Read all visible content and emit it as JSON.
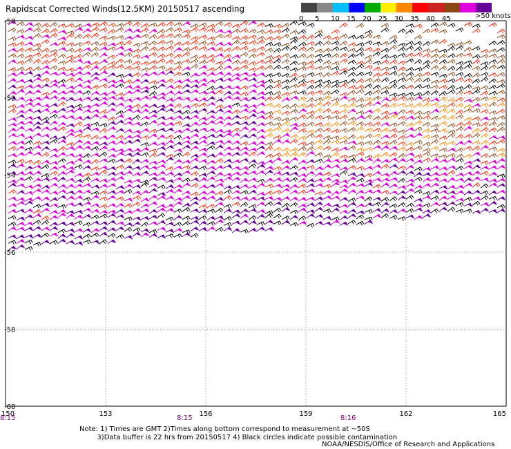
{
  "title": "Rapidscat Corrected Winds(12.5KM) 20150517 ascending",
  "legend": {
    "bins": [
      {
        "label": "0",
        "color": "#444444"
      },
      {
        "label": "5",
        "color": "#888888"
      },
      {
        "label": "10",
        "color": "#00bfff"
      },
      {
        "label": "15",
        "color": "#0000ff"
      },
      {
        "label": "20",
        "color": "#00aa00"
      },
      {
        "label": "25",
        "color": "#ffee00"
      },
      {
        "label": "30",
        "color": "#ff8800"
      },
      {
        "label": "35",
        "color": "#ff0000"
      },
      {
        "label": "40",
        "color": "#cc2222"
      },
      {
        "label": "45",
        "color": "#8b4513"
      },
      {
        "label": "",
        "color": "#dd00dd"
      },
      {
        "label": "",
        "color": "#660099"
      }
    ],
    "units": ">50 knots"
  },
  "axes": {
    "lon_ticks": [
      "150",
      "153",
      "156",
      "159",
      "162",
      "165"
    ],
    "lat_ticks": [
      "-50",
      "-52",
      "-54",
      "-56",
      "-58",
      "-60"
    ],
    "lon_range": [
      150,
      165
    ],
    "lat_range": [
      -50,
      -60
    ],
    "grid": "dotted"
  },
  "orbit_times": [
    {
      "label": "8:15",
      "lon": 150
    },
    {
      "label": "8:15",
      "lon": 155.3
    },
    {
      "label": "8:16",
      "lon": 160.2
    }
  ],
  "note_lines": [
    "Note: 1) Times are GMT 2)Times along bottom correspond to measurement at ~50S",
    "        3)Data buffer is 22 hrs from 20150517 4) Black circles indicate possible contamination"
  ],
  "credit": "NOAA/NESDIS/Office of Research and Applications",
  "colors": {
    "low": "#000000",
    "brown": "#8b4513",
    "orange": "#ff8800",
    "red": "#ff2200",
    "magenta": "#dd00dd",
    "purple": "#660099"
  }
}
